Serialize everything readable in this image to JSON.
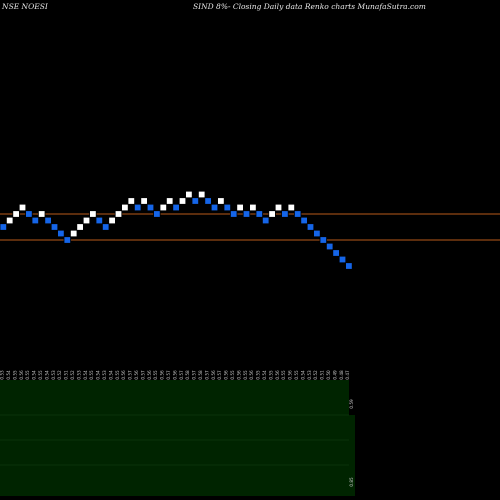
{
  "header": {
    "symbol": "NSE NOESI",
    "description": "SIND 8%-  Closing Daily data  Renko  charts MunafaSutra.com"
  },
  "colors": {
    "background": "#000000",
    "up_brick": "#ffffff",
    "down_brick": "#1565e8",
    "brick_outline": "#000000",
    "reference_line": "#b85a1a",
    "volume_panel": "#002400",
    "volume_gridline": "#1a4a1a",
    "text": "#e8e8e8",
    "tick_text": "#cccccc"
  },
  "chart_data": {
    "type": "renko",
    "title": "SIND 8%-  Closing Daily data  Renko  charts MunafaSutra.com",
    "symbol": "NSE NOESI",
    "reference_lines": [
      0.55,
      0.51
    ],
    "bricks": [
      {
        "dir": "down",
        "value": 0.53
      },
      {
        "dir": "up",
        "value": 0.54
      },
      {
        "dir": "up",
        "value": 0.55
      },
      {
        "dir": "up",
        "value": 0.56
      },
      {
        "dir": "down",
        "value": 0.55
      },
      {
        "dir": "down",
        "value": 0.54
      },
      {
        "dir": "up",
        "value": 0.55
      },
      {
        "dir": "down",
        "value": 0.54
      },
      {
        "dir": "down",
        "value": 0.53
      },
      {
        "dir": "down",
        "value": 0.52
      },
      {
        "dir": "down",
        "value": 0.51
      },
      {
        "dir": "up",
        "value": 0.52
      },
      {
        "dir": "up",
        "value": 0.53
      },
      {
        "dir": "up",
        "value": 0.54
      },
      {
        "dir": "up",
        "value": 0.55
      },
      {
        "dir": "down",
        "value": 0.54
      },
      {
        "dir": "down",
        "value": 0.53
      },
      {
        "dir": "up",
        "value": 0.54
      },
      {
        "dir": "up",
        "value": 0.55
      },
      {
        "dir": "up",
        "value": 0.56
      },
      {
        "dir": "up",
        "value": 0.57
      },
      {
        "dir": "down",
        "value": 0.56
      },
      {
        "dir": "up",
        "value": 0.57
      },
      {
        "dir": "down",
        "value": 0.56
      },
      {
        "dir": "down",
        "value": 0.55
      },
      {
        "dir": "up",
        "value": 0.56
      },
      {
        "dir": "up",
        "value": 0.57
      },
      {
        "dir": "down",
        "value": 0.56
      },
      {
        "dir": "up",
        "value": 0.57
      },
      {
        "dir": "up",
        "value": 0.58
      },
      {
        "dir": "down",
        "value": 0.57
      },
      {
        "dir": "up",
        "value": 0.58
      },
      {
        "dir": "down",
        "value": 0.57
      },
      {
        "dir": "down",
        "value": 0.56
      },
      {
        "dir": "up",
        "value": 0.57
      },
      {
        "dir": "down",
        "value": 0.56
      },
      {
        "dir": "down",
        "value": 0.55
      },
      {
        "dir": "up",
        "value": 0.56
      },
      {
        "dir": "down",
        "value": 0.55
      },
      {
        "dir": "up",
        "value": 0.56
      },
      {
        "dir": "down",
        "value": 0.55
      },
      {
        "dir": "down",
        "value": 0.54
      },
      {
        "dir": "up",
        "value": 0.55
      },
      {
        "dir": "up",
        "value": 0.56
      },
      {
        "dir": "down",
        "value": 0.55
      },
      {
        "dir": "up",
        "value": 0.56
      },
      {
        "dir": "down",
        "value": 0.55
      },
      {
        "dir": "down",
        "value": 0.54
      },
      {
        "dir": "down",
        "value": 0.53
      },
      {
        "dir": "down",
        "value": 0.52
      },
      {
        "dir": "down",
        "value": 0.51
      },
      {
        "dir": "down",
        "value": 0.5
      },
      {
        "dir": "down",
        "value": 0.49
      },
      {
        "dir": "down",
        "value": 0.48
      },
      {
        "dir": "down",
        "value": 0.47
      }
    ],
    "x_tick_labels": [
      "0.53",
      "0.54",
      "0.55",
      "0.56",
      "0.55",
      "0.54",
      "0.55",
      "0.54",
      "0.53",
      "0.52",
      "0.51",
      "0.52",
      "0.53",
      "0.54",
      "0.55",
      "0.54",
      "0.53",
      "0.54",
      "0.55",
      "0.56",
      "0.57",
      "0.56",
      "0.57",
      "0.56",
      "0.55",
      "0.56",
      "0.57",
      "0.56",
      "0.57",
      "0.58",
      "0.57",
      "0.58",
      "0.57",
      "0.56",
      "0.57",
      "0.56",
      "0.55",
      "0.56",
      "0.55",
      "0.56",
      "0.55",
      "0.54",
      "0.55",
      "0.56",
      "0.55",
      "0.56",
      "0.55",
      "0.54",
      "0.53",
      "0.52",
      "0.51",
      "0.50",
      "0.49",
      "0.48",
      "0.47"
    ],
    "volume_axis_labels": [
      "0.59",
      "0.85"
    ]
  }
}
